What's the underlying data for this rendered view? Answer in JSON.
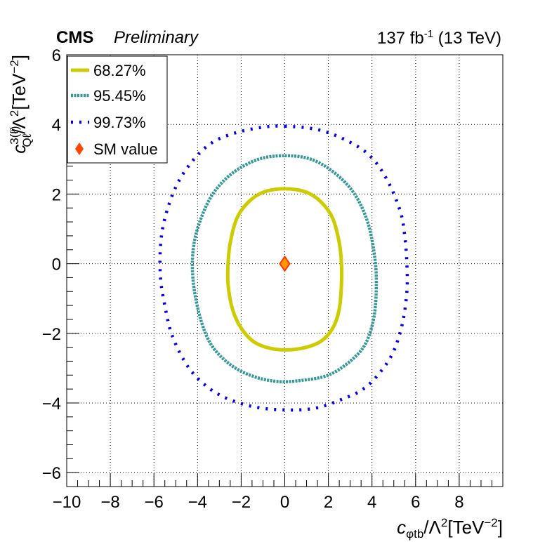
{
  "header": {
    "experiment": "CMS",
    "status": "Preliminary",
    "lumi_num": "137 fb",
    "lumi_exp": "-1",
    "lumi_energy": " (13 TeV)"
  },
  "chart_data": {
    "type": "scatter",
    "xlabel": "c_{φtb}/Λ^{2}[TeV^{-2}]",
    "ylabel": "c^{3(ℓ)}_{Qℓ}/Λ^{2}[TeV^{-2}]",
    "xlim": [
      -10,
      10
    ],
    "ylim": [
      -6.4,
      6.0
    ],
    "xticks": [
      -10,
      -8,
      -6,
      -4,
      -2,
      0,
      2,
      4,
      6,
      8
    ],
    "yticks": [
      -6,
      -4,
      -2,
      0,
      2,
      4,
      6
    ],
    "grid": true,
    "legend": {
      "position": "top-left",
      "entries": [
        "68.27%",
        "95.45%",
        "99.73%",
        "SM value"
      ]
    },
    "series": [
      {
        "name": "68.27%",
        "color": "#cccc00",
        "style": "solid",
        "contour": [
          [
            0,
            2.15
          ],
          [
            1.0,
            2.05
          ],
          [
            1.7,
            1.75
          ],
          [
            2.2,
            1.3
          ],
          [
            2.5,
            0.6
          ],
          [
            2.6,
            0.0
          ],
          [
            2.6,
            -0.6
          ],
          [
            2.5,
            -1.3
          ],
          [
            2.2,
            -1.85
          ],
          [
            1.6,
            -2.25
          ],
          [
            0.6,
            -2.45
          ],
          [
            -0.5,
            -2.45
          ],
          [
            -1.4,
            -2.25
          ],
          [
            -2.0,
            -1.85
          ],
          [
            -2.4,
            -1.3
          ],
          [
            -2.6,
            -0.6
          ],
          [
            -2.6,
            0.0
          ],
          [
            -2.5,
            0.6
          ],
          [
            -2.2,
            1.3
          ],
          [
            -1.7,
            1.75
          ],
          [
            -1.0,
            2.05
          ],
          [
            0,
            2.15
          ]
        ]
      },
      {
        "name": "95.45%",
        "color": "#339999",
        "style": "dashed",
        "contour": [
          [
            0,
            3.1
          ],
          [
            1.2,
            3.0
          ],
          [
            2.3,
            2.6
          ],
          [
            3.2,
            2.0
          ],
          [
            3.8,
            1.2
          ],
          [
            4.1,
            0.3
          ],
          [
            4.2,
            -0.5
          ],
          [
            4.1,
            -1.5
          ],
          [
            3.7,
            -2.3
          ],
          [
            3.0,
            -2.8
          ],
          [
            2.0,
            -3.2
          ],
          [
            0.8,
            -3.35
          ],
          [
            -0.4,
            -3.38
          ],
          [
            -1.6,
            -3.2
          ],
          [
            -2.6,
            -2.85
          ],
          [
            -3.4,
            -2.3
          ],
          [
            -3.9,
            -1.5
          ],
          [
            -4.2,
            -0.5
          ],
          [
            -4.2,
            0.4
          ],
          [
            -3.9,
            1.2
          ],
          [
            -3.3,
            2.0
          ],
          [
            -2.4,
            2.6
          ],
          [
            -1.2,
            3.0
          ],
          [
            0,
            3.1
          ]
        ]
      },
      {
        "name": "99.73%",
        "color": "#0000ee",
        "style": "dotted",
        "contour": [
          [
            0,
            3.95
          ],
          [
            1.5,
            3.85
          ],
          [
            2.8,
            3.55
          ],
          [
            3.9,
            3.1
          ],
          [
            4.7,
            2.4
          ],
          [
            5.3,
            1.5
          ],
          [
            5.5,
            0.8
          ],
          [
            5.6,
            0.0
          ],
          [
            5.6,
            -0.8
          ],
          [
            5.4,
            -1.7
          ],
          [
            5.0,
            -2.5
          ],
          [
            4.4,
            -3.1
          ],
          [
            3.6,
            -3.6
          ],
          [
            2.6,
            -3.9
          ],
          [
            1.4,
            -4.15
          ],
          [
            0,
            -4.2
          ],
          [
            -1.5,
            -4.1
          ],
          [
            -2.9,
            -3.8
          ],
          [
            -3.9,
            -3.35
          ],
          [
            -4.6,
            -2.8
          ],
          [
            -5.2,
            -2.0
          ],
          [
            -5.5,
            -1.2
          ],
          [
            -5.7,
            -0.4
          ],
          [
            -5.7,
            0.5
          ],
          [
            -5.5,
            1.3
          ],
          [
            -5.0,
            2.2
          ],
          [
            -4.3,
            2.9
          ],
          [
            -3.4,
            3.45
          ],
          [
            -2.3,
            3.75
          ],
          [
            -1.0,
            3.92
          ],
          [
            0,
            3.95
          ]
        ]
      }
    ],
    "sm_value": {
      "name": "SM value",
      "x": 0,
      "y": 0,
      "color": "#ff4400"
    }
  }
}
